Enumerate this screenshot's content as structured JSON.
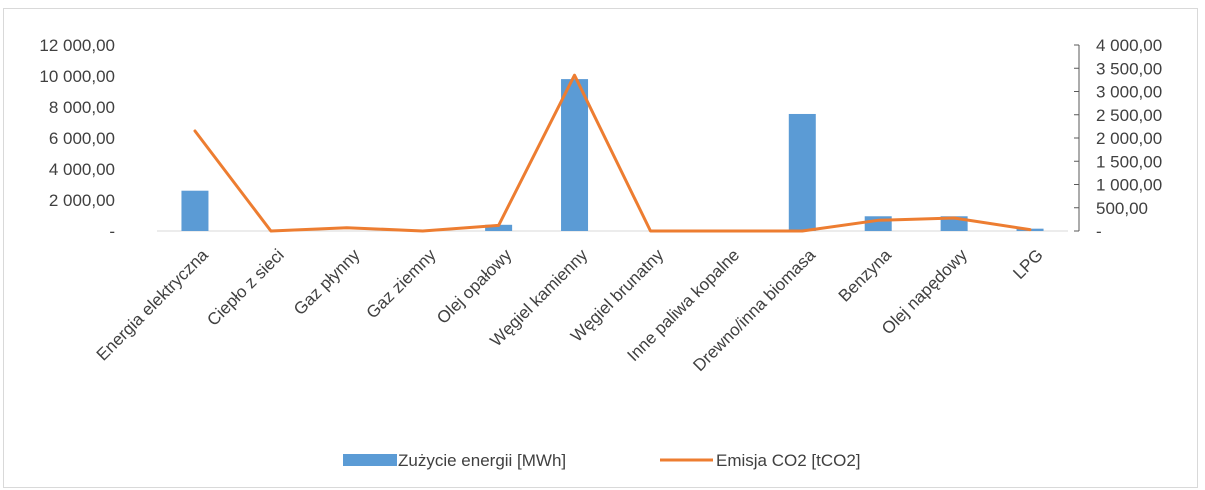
{
  "chart_data": {
    "type": "bar",
    "categories": [
      "Energia elektryczna",
      "Ciepło z sieci",
      "Gaz płynny",
      "Gaz ziemny",
      "Olej opałowy",
      "Węgiel kamienny",
      "Węgiel brunatny",
      "Inne paliwa kopalne",
      "Drewno/inna biomasa",
      "Benzyna",
      "Olej napędowy",
      "LPG"
    ],
    "series": [
      {
        "name": "Zużycie energii [MWh]",
        "type": "bar",
        "axis": "left",
        "color": "#5b9bd5",
        "values": [
          2600,
          0,
          0,
          0,
          400,
          9800,
          0,
          0,
          7550,
          950,
          950,
          150
        ]
      },
      {
        "name": "Emisja CO2 [tCO2]",
        "type": "line",
        "axis": "right",
        "color": "#ed7d31",
        "values": [
          2150,
          0,
          70,
          0,
          120,
          3350,
          0,
          0,
          0,
          230,
          280,
          30
        ]
      }
    ],
    "y_left": {
      "ylim": [
        0,
        12000
      ],
      "ticks": [
        0,
        2000,
        4000,
        6000,
        8000,
        10000,
        12000
      ],
      "tick_labels": [
        "-",
        "2 000,00",
        "4 000,00",
        "6 000,00",
        "8 000,00",
        "10 000,00",
        "12 000,00"
      ]
    },
    "y_right": {
      "ylim": [
        0,
        4000
      ],
      "ticks": [
        0,
        500,
        1000,
        1500,
        2000,
        2500,
        3000,
        3500,
        4000
      ],
      "tick_labels": [
        "-",
        "500,00",
        "1 000,00",
        "1 500,00",
        "2 000,00",
        "2 500,00",
        "3 000,00",
        "3 500,00",
        "4 000,00"
      ]
    },
    "legend": {
      "position": "bottom"
    },
    "grid": false
  }
}
